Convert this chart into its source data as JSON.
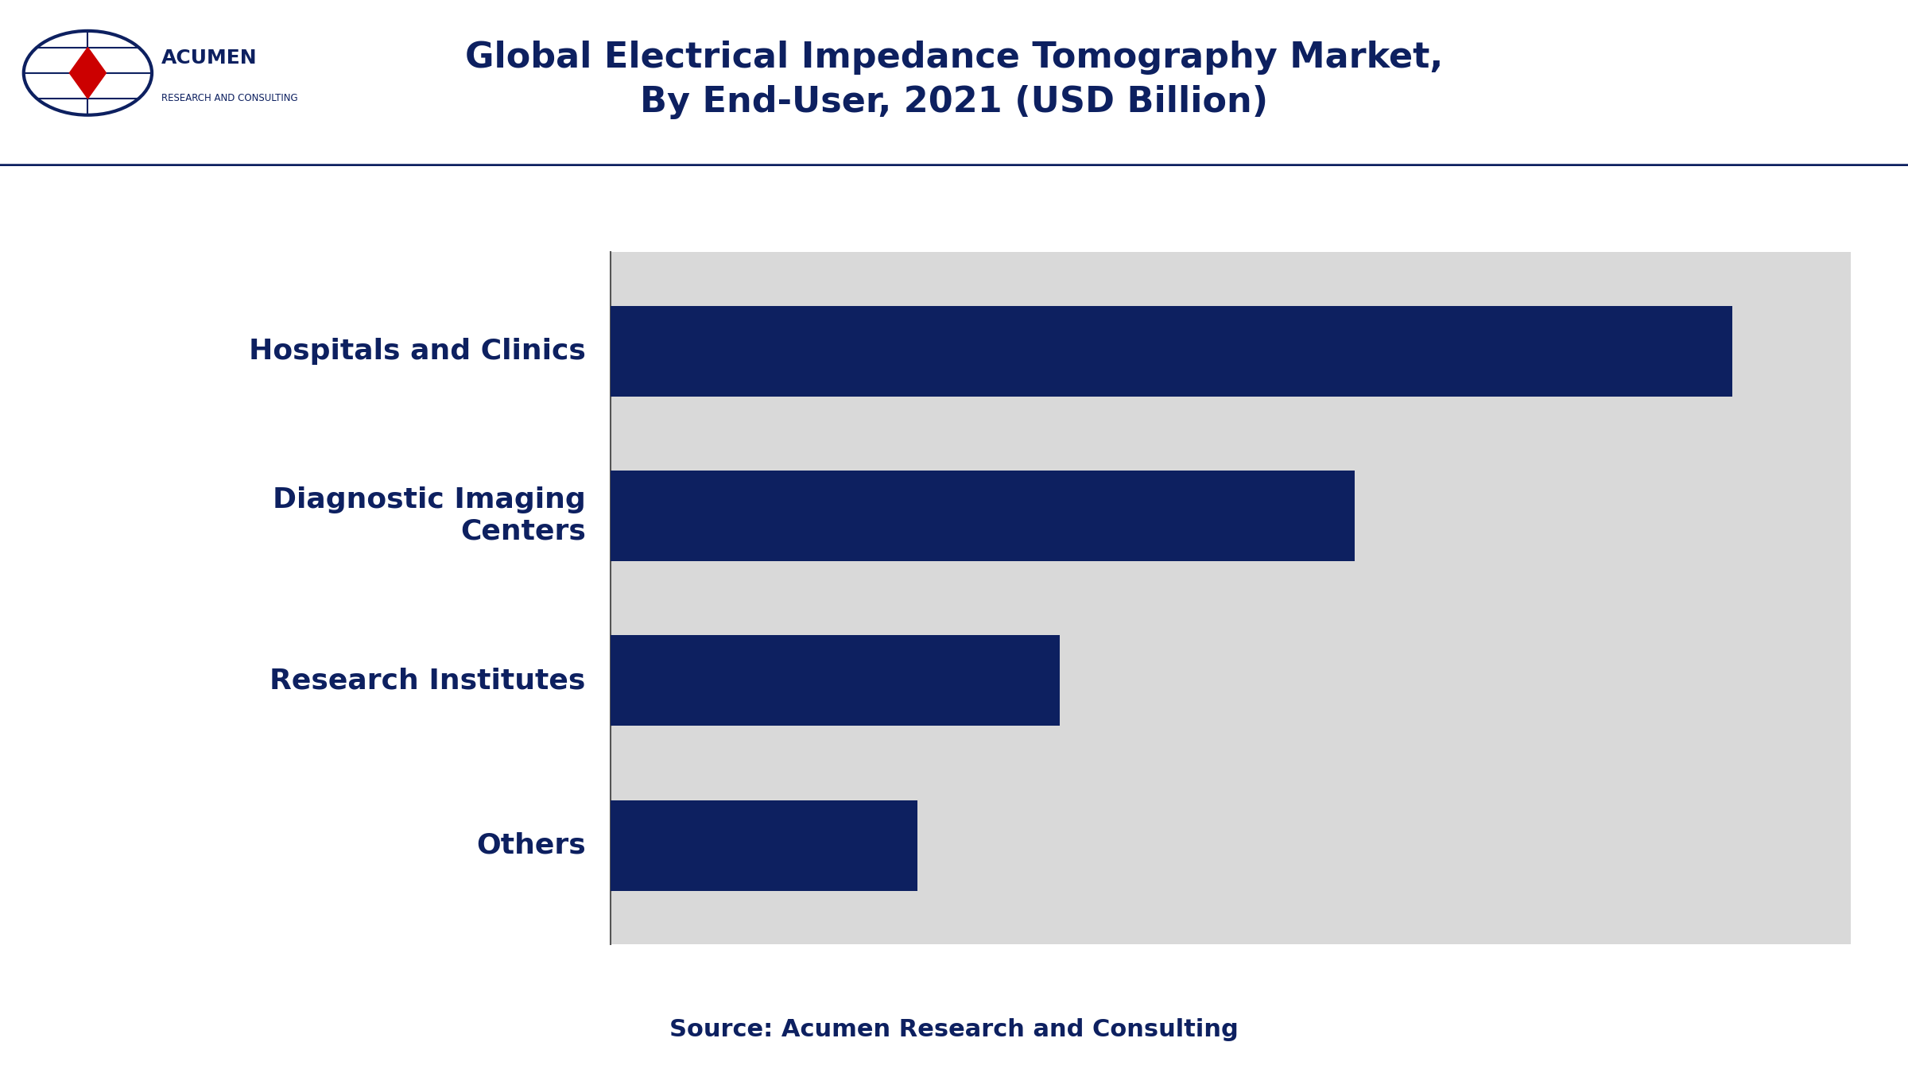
{
  "title_line1": "Global Electrical Impedance Tomography Market,",
  "title_line2": "By End-User, 2021 (USD Billion)",
  "categories": [
    "Hospitals and Clinics",
    "Diagnostic Imaging\nCenters",
    "Research Institutes",
    "Others"
  ],
  "values": [
    0.95,
    0.63,
    0.38,
    0.26
  ],
  "bar_color": "#0d2060",
  "bg_color": "#d9d9d9",
  "header_bg": "#ffffff",
  "title_color": "#0d2060",
  "label_color": "#0d2060",
  "source_text": "Source: Acumen Research and Consulting",
  "xlim": [
    0,
    1.05
  ],
  "bar_height": 0.55,
  "label_fontsize": 26,
  "title_fontsize": 32,
  "source_fontsize": 22
}
